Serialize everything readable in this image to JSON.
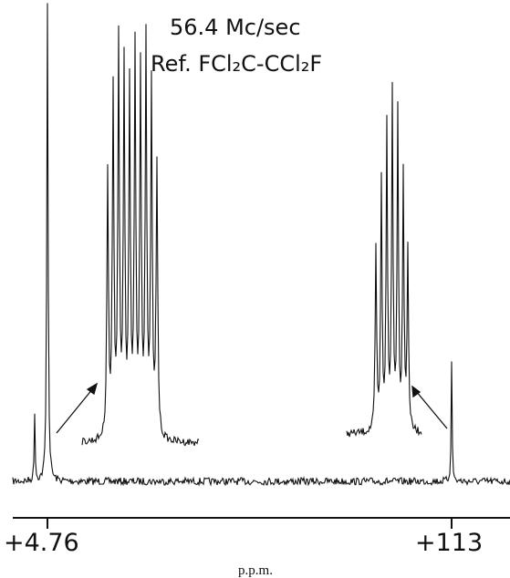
{
  "figure": {
    "frequency": "56.4 Mc/sec",
    "reference": "Ref. FCl₂C-CCl₂F",
    "axis_labels": [
      "+4.76",
      "+113"
    ],
    "axis_title": "p.p.m."
  }
}
